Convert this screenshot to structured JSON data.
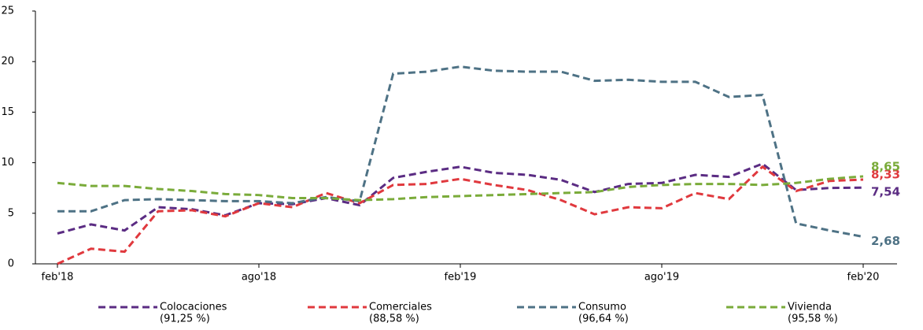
{
  "chart_data": {
    "type": "line",
    "categories": [
      "feb'18",
      null,
      null,
      null,
      null,
      null,
      "ago'18",
      null,
      null,
      null,
      null,
      null,
      "feb'19",
      null,
      null,
      null,
      null,
      null,
      "ago'19",
      null,
      null,
      null,
      null,
      null,
      "feb'20"
    ],
    "ylim": [
      0,
      25
    ],
    "yticks": [
      0,
      5,
      10,
      15,
      20,
      25
    ],
    "grid": false,
    "series": [
      {
        "name": "Colocaciones",
        "share": "(91,25 %)",
        "color": "#5b2c83",
        "values": [
          3.0,
          3.9,
          3.3,
          5.6,
          5.4,
          4.8,
          6.0,
          5.9,
          6.5,
          5.8,
          8.5,
          9.1,
          9.6,
          9.0,
          8.8,
          8.3,
          7.1,
          7.9,
          8.0,
          8.8,
          8.6,
          9.9,
          7.3,
          7.5,
          7.54
        ],
        "value_labels": [
          null,
          null,
          null,
          null,
          null,
          null,
          null,
          null,
          null,
          null,
          null,
          null,
          null,
          null,
          null,
          null,
          null,
          null,
          null,
          null,
          null,
          null,
          null,
          null,
          "7,54"
        ]
      },
      {
        "name": "Comerciales",
        "share": "(88,58 %)",
        "color": "#e0393e",
        "values": [
          0.0,
          1.5,
          1.2,
          5.2,
          5.3,
          4.7,
          6.0,
          5.6,
          7.0,
          6.0,
          7.8,
          7.9,
          8.4,
          7.8,
          7.3,
          6.3,
          4.9,
          5.6,
          5.5,
          7.0,
          6.4,
          9.6,
          7.2,
          8.2,
          8.33
        ],
        "value_labels": [
          null,
          null,
          null,
          null,
          null,
          null,
          null,
          null,
          null,
          null,
          null,
          null,
          null,
          null,
          null,
          null,
          null,
          null,
          null,
          null,
          null,
          null,
          null,
          null,
          "8,33"
        ]
      },
      {
        "name": "Consumo",
        "share": "(96,64 %)",
        "color": "#4e7285",
        "values": [
          5.2,
          5.2,
          6.3,
          6.4,
          6.3,
          6.2,
          6.2,
          6.0,
          6.6,
          6.2,
          18.8,
          19.0,
          19.5,
          19.1,
          19.0,
          19.0,
          18.1,
          18.2,
          18.0,
          18.0,
          16.5,
          16.7,
          4.0,
          3.3,
          2.68
        ],
        "value_labels": [
          null,
          null,
          null,
          null,
          null,
          null,
          null,
          null,
          null,
          null,
          null,
          null,
          null,
          null,
          null,
          null,
          null,
          null,
          null,
          null,
          null,
          null,
          null,
          null,
          "2,68"
        ]
      },
      {
        "name": "Vivienda",
        "share": "(95,58 %)",
        "color": "#7aab3a",
        "values": [
          8.0,
          7.7,
          7.7,
          7.4,
          7.2,
          6.9,
          6.8,
          6.5,
          6.5,
          6.3,
          6.4,
          6.6,
          6.7,
          6.8,
          6.9,
          7.0,
          7.1,
          7.6,
          7.8,
          7.9,
          7.9,
          7.8,
          8.0,
          8.4,
          8.65
        ],
        "value_labels": [
          null,
          null,
          null,
          null,
          null,
          null,
          null,
          null,
          null,
          null,
          null,
          null,
          null,
          null,
          null,
          null,
          null,
          null,
          null,
          null,
          null,
          null,
          null,
          null,
          "8,65"
        ]
      }
    ]
  }
}
